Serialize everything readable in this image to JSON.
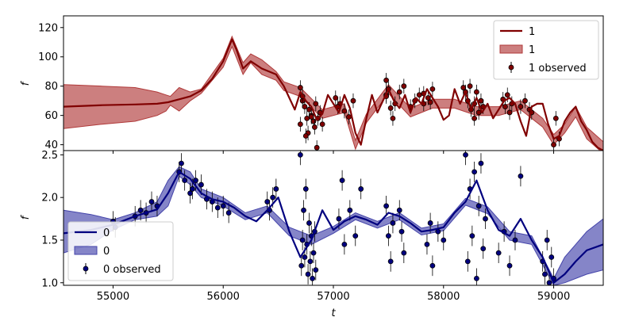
{
  "chart_data": [
    {
      "type": "line",
      "panel": "top",
      "xlabel": "",
      "ylabel": "f",
      "xlim": [
        54550,
        59450
      ],
      "ylim": [
        36,
        128
      ],
      "yticks": [
        40,
        60,
        80,
        100,
        120
      ],
      "xticks": [
        55000,
        56000,
        57000,
        58000,
        59000
      ],
      "show_xticklabels": false,
      "grid": false,
      "legend_position": "top-right",
      "legend": [
        "1",
        "1",
        "1 observed"
      ],
      "colors": {
        "line": "#800000",
        "band": "#b03a3a",
        "points": "#800000"
      },
      "series": [
        {
          "name": "1",
          "kind": "mean",
          "x": [
            54550,
            54900,
            55200,
            55400,
            55500,
            55600,
            55700,
            55800,
            55900,
            56000,
            56080,
            56120,
            56180,
            56250,
            56350,
            56480,
            56550,
            56600,
            56650,
            56700,
            56750,
            56800,
            56850,
            56900,
            56950,
            57000,
            57050,
            57100,
            57150,
            57200,
            57250,
            57300,
            57350,
            57400,
            57450,
            57500,
            57550,
            57600,
            57650,
            57700,
            57750,
            57800,
            57850,
            57900,
            57950,
            58000,
            58050,
            58100,
            58150,
            58200,
            58250,
            58300,
            58350,
            58400,
            58450,
            58500,
            58550,
            58600,
            58650,
            58700,
            58750,
            58800,
            58850,
            58900,
            58950,
            59000,
            59050,
            59100,
            59150,
            59200,
            59250,
            59300,
            59350,
            59400,
            59450
          ],
          "values": [
            66,
            67,
            67.5,
            68,
            69,
            71,
            73,
            77,
            85,
            97,
            112,
            105,
            92,
            97,
            92,
            88,
            80,
            72,
            64,
            76,
            70,
            66,
            57,
            61,
            74,
            68,
            62,
            74,
            65,
            48,
            40,
            58,
            74,
            62,
            70,
            78,
            70,
            65,
            74,
            62,
            72,
            68,
            78,
            72,
            66,
            57,
            60,
            78,
            68,
            76,
            64,
            72,
            62,
            68,
            58,
            64,
            70,
            72,
            68,
            56,
            46,
            66,
            68,
            68,
            54,
            44,
            46,
            56,
            62,
            66,
            56,
            50,
            42,
            38,
            36
          ]
        },
        {
          "name": "1",
          "kind": "band",
          "x": [
            54550,
            54900,
            55200,
            55400,
            55480,
            55520,
            55600,
            55700,
            55800,
            56000,
            56080,
            56180,
            56250,
            56350,
            56480,
            56550,
            56700,
            56900,
            57100,
            57200,
            57300,
            57500,
            57700,
            57900,
            58100,
            58300,
            58500,
            58700,
            58900,
            59000,
            59100,
            59200,
            59300,
            59450
          ],
          "lower": [
            51,
            54,
            56,
            60,
            63,
            67,
            63,
            70,
            75,
            93,
            107,
            88,
            96,
            88,
            84,
            77,
            73,
            58,
            62,
            37,
            55,
            75,
            59,
            65,
            65,
            60,
            60,
            64,
            52,
            40,
            48,
            59,
            44,
            34
          ],
          "upper": [
            81,
            80,
            79,
            76,
            74,
            73,
            79,
            76,
            78,
            99,
            114,
            96,
            102,
            98,
            90,
            83,
            79,
            64,
            68,
            43,
            61,
            81,
            65,
            71,
            71,
            66,
            66,
            70,
            58,
            47,
            54,
            66,
            52,
            42
          ]
        },
        {
          "name": "1 observed",
          "kind": "points",
          "x": [
            56700,
            56720,
            56740,
            56760,
            56780,
            56800,
            56820,
            56840,
            56860,
            56880,
            56900,
            56720,
            56770,
            56830,
            56700,
            56750,
            56800,
            56850,
            57020,
            57060,
            57100,
            57140,
            57180,
            57040,
            57480,
            57500,
            57520,
            57540,
            57560,
            57480,
            57600,
            57700,
            57740,
            57780,
            57820,
            57860,
            57900,
            57880,
            57820,
            58180,
            58200,
            58220,
            58250,
            58280,
            58300,
            58320,
            58340,
            58360,
            58240,
            58280,
            58540,
            58560,
            58580,
            58600,
            58620,
            58700,
            58740,
            58780,
            58800,
            59000,
            59020,
            59050,
            57480,
            57640
          ],
          "y": [
            79,
            70,
            66,
            58,
            64,
            60,
            56,
            68,
            58,
            62,
            54,
            73,
            48,
            52,
            54,
            46,
            59,
            38,
            72,
            68,
            63,
            59,
            70,
            66,
            84,
            78,
            65,
            58,
            68,
            74,
            76,
            66,
            70,
            74,
            68,
            72,
            78,
            69,
            75,
            79,
            76,
            70,
            64,
            68,
            76,
            62,
            70,
            66,
            80,
            58,
            71,
            66,
            74,
            62,
            68,
            66,
            70,
            64,
            62,
            40,
            58,
            44,
            73,
            80
          ]
        }
      ]
    },
    {
      "type": "line",
      "panel": "bottom",
      "xlabel": "t",
      "ylabel": "f",
      "xlim": [
        54550,
        59450
      ],
      "ylim": [
        0.97,
        2.55
      ],
      "yticks": [
        1.0,
        1.5,
        2.0,
        2.5
      ],
      "yticklabels": [
        "1.0",
        "1.5",
        "2.0",
        "2.5"
      ],
      "xticks": [
        55000,
        56000,
        57000,
        58000,
        59000
      ],
      "xticklabels": [
        "55000",
        "56000",
        "57000",
        "58000",
        "59000"
      ],
      "grid": false,
      "legend_position": "bottom-left",
      "legend": [
        "0",
        "0",
        "0 observed"
      ],
      "colors": {
        "line": "#00007f",
        "band": "#4444aa",
        "points": "#00007f"
      },
      "series": [
        {
          "name": "0",
          "kind": "mean",
          "x": [
            54550,
            54800,
            55000,
            55200,
            55400,
            55500,
            55600,
            55700,
            55800,
            55900,
            56000,
            56100,
            56200,
            56300,
            56400,
            56500,
            56600,
            56700,
            56800,
            56900,
            57000,
            57100,
            57200,
            57300,
            57400,
            57500,
            57600,
            57700,
            57800,
            57900,
            58000,
            58100,
            58200,
            58300,
            58400,
            58500,
            58600,
            58700,
            58800,
            58900,
            59000,
            59100,
            59200,
            59300,
            59450
          ],
          "values": [
            1.58,
            1.62,
            1.68,
            1.78,
            1.86,
            2.05,
            2.3,
            2.22,
            2.05,
            1.98,
            1.95,
            1.88,
            1.78,
            1.72,
            1.85,
            2.0,
            1.6,
            1.3,
            1.5,
            1.85,
            1.62,
            1.72,
            1.78,
            1.74,
            1.68,
            1.82,
            1.78,
            1.7,
            1.6,
            1.62,
            1.65,
            1.82,
            1.95,
            2.2,
            1.85,
            1.62,
            1.55,
            1.75,
            1.5,
            1.3,
            1.0,
            1.1,
            1.25,
            1.38,
            1.45
          ]
        },
        {
          "name": "0",
          "kind": "band",
          "x": [
            54550,
            54800,
            55000,
            55200,
            55400,
            55500,
            55600,
            55700,
            55800,
            56000,
            56200,
            56400,
            56600,
            56800,
            57000,
            57200,
            57400,
            57600,
            57800,
            58000,
            58200,
            58400,
            58600,
            58800,
            59000,
            59100,
            59200,
            59300,
            59450
          ],
          "lower": [
            1.35,
            1.45,
            1.62,
            1.74,
            1.78,
            1.9,
            2.25,
            2.15,
            2.0,
            1.9,
            1.74,
            1.82,
            1.55,
            1.45,
            1.58,
            1.74,
            1.64,
            1.74,
            1.56,
            1.61,
            1.91,
            1.81,
            1.5,
            1.45,
            0.97,
            1.0,
            1.05,
            1.1,
            1.15
          ],
          "upper": [
            1.85,
            1.8,
            1.74,
            1.82,
            1.95,
            2.2,
            2.36,
            2.3,
            2.1,
            2.0,
            1.82,
            1.9,
            1.65,
            1.55,
            1.66,
            1.82,
            1.72,
            1.82,
            1.64,
            1.69,
            1.99,
            1.89,
            1.6,
            1.55,
            1.05,
            1.3,
            1.45,
            1.6,
            1.75
          ]
        },
        {
          "name": "0 observed",
          "kind": "points",
          "x": [
            55000,
            55020,
            55200,
            55250,
            55300,
            55350,
            55400,
            55600,
            55620,
            55650,
            55700,
            55720,
            55750,
            55800,
            55850,
            55900,
            55950,
            56000,
            56050,
            56400,
            56420,
            56450,
            56480,
            56700,
            56710,
            56720,
            56730,
            56740,
            56750,
            56760,
            56770,
            56780,
            56790,
            56800,
            56810,
            56820,
            56830,
            56840,
            57050,
            57080,
            57100,
            57150,
            57200,
            57250,
            57480,
            57500,
            57520,
            57540,
            57600,
            57620,
            57640,
            57850,
            57880,
            57900,
            57950,
            58000,
            58200,
            58220,
            58240,
            58260,
            58280,
            58300,
            58320,
            58340,
            58360,
            58380,
            58500,
            58550,
            58600,
            58650,
            58700,
            58900,
            58920,
            58940,
            58960,
            58980,
            59000
          ],
          "y": [
            1.72,
            1.65,
            1.78,
            1.85,
            1.82,
            1.95,
            1.9,
            2.3,
            2.4,
            2.2,
            2.05,
            2.1,
            2.2,
            2.15,
            1.98,
            1.95,
            1.88,
            1.9,
            1.82,
            1.95,
            1.85,
            2.0,
            2.1,
            2.5,
            1.2,
            1.5,
            1.85,
            1.3,
            2.1,
            1.45,
            1.1,
            1.7,
            1.25,
            1.55,
            1.05,
            1.35,
            1.6,
            1.15,
            1.75,
            2.2,
            1.45,
            1.85,
            1.55,
            2.1,
            1.9,
            1.55,
            1.25,
            1.7,
            1.85,
            1.6,
            1.35,
            1.45,
            1.7,
            1.2,
            1.6,
            1.5,
            2.5,
            1.25,
            2.1,
            1.55,
            2.3,
            1.05,
            1.9,
            2.4,
            1.4,
            1.75,
            1.35,
            1.6,
            1.2,
            1.5,
            2.25,
            1.25,
            1.1,
            1.5,
            1.0,
            1.3,
            1.05
          ]
        }
      ]
    }
  ]
}
